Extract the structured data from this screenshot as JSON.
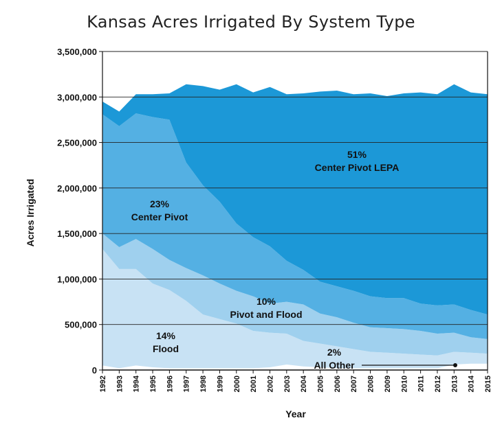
{
  "chart_data": {
    "type": "area",
    "stacked": true,
    "title": "Kansas Acres Irrigated By System Type",
    "xlabel": "Year",
    "ylabel": "Acres Irrigated",
    "ylim": [
      0,
      3500000
    ],
    "yticks": [
      "0",
      "500,000",
      "1,000,000",
      "1,500,000",
      "2,000,000",
      "2,500,000",
      "3,000,000",
      "3,500,000"
    ],
    "ytick_values": [
      0,
      500000,
      1000000,
      1500000,
      2000000,
      2500000,
      3000000,
      3500000
    ],
    "x": [
      "1992",
      "1993",
      "1994",
      "1995",
      "1996",
      "1997",
      "1998",
      "1999",
      "2000",
      "2001",
      "2002",
      "2003",
      "2004",
      "2005",
      "2006",
      "2007",
      "2008",
      "2009",
      "2010",
      "2011",
      "2012",
      "2013",
      "2014",
      "2015"
    ],
    "grid": true,
    "series": [
      {
        "key": "other",
        "color": "#ffffff",
        "values": [
          50000,
          20000,
          50000,
          30000,
          20000,
          20000,
          20000,
          20000,
          20000,
          20000,
          30000,
          60000,
          40000,
          30000,
          20000,
          20000,
          20000,
          20000,
          20000,
          20000,
          20000,
          60000,
          70000,
          70000
        ]
      },
      {
        "key": "flood",
        "color": "#c8e2f4",
        "values": [
          1280000,
          1090000,
          1060000,
          920000,
          860000,
          740000,
          590000,
          540000,
          490000,
          410000,
          380000,
          340000,
          280000,
          260000,
          240000,
          210000,
          180000,
          170000,
          160000,
          150000,
          140000,
          140000,
          120000,
          110000
        ]
      },
      {
        "key": "pivot_flood",
        "color": "#9fd0ee",
        "values": [
          170000,
          240000,
          330000,
          380000,
          330000,
          360000,
          430000,
          390000,
          360000,
          380000,
          320000,
          350000,
          400000,
          330000,
          320000,
          290000,
          270000,
          270000,
          270000,
          260000,
          240000,
          210000,
          170000,
          160000
        ]
      },
      {
        "key": "center_pivot",
        "color": "#54b0e3",
        "values": [
          1310000,
          1330000,
          1380000,
          1450000,
          1540000,
          1160000,
          990000,
          900000,
          740000,
          650000,
          630000,
          450000,
          380000,
          350000,
          340000,
          350000,
          340000,
          330000,
          340000,
          300000,
          310000,
          310000,
          300000,
          270000
        ]
      },
      {
        "key": "lepa",
        "color": "#1c98d7",
        "values": [
          140000,
          160000,
          210000,
          250000,
          290000,
          860000,
          1090000,
          1230000,
          1530000,
          1590000,
          1750000,
          1830000,
          1940000,
          2090000,
          2150000,
          2160000,
          2230000,
          2220000,
          2250000,
          2320000,
          2320000,
          2420000,
          2390000,
          2420000
        ]
      }
    ],
    "annotations": [
      {
        "lines": [
          "51%",
          "Center Pivot LEPA"
        ]
      },
      {
        "lines": [
          "23%",
          "Center Pivot"
        ]
      },
      {
        "lines": [
          "10%",
          "Pivot and Flood"
        ]
      },
      {
        "lines": [
          "14%",
          "Flood"
        ]
      },
      {
        "lines": [
          "2%",
          "All Other"
        ]
      }
    ]
  }
}
